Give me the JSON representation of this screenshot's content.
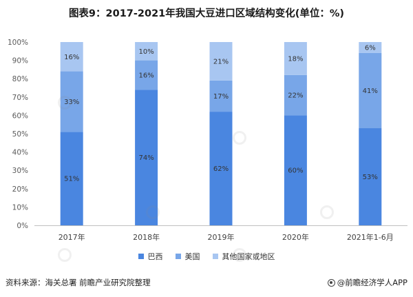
{
  "chart_data": {
    "type": "bar",
    "stacked": true,
    "title": "图表9：2017-2021年我国大豆进口区域结构变化(单位：%)",
    "categories": [
      "2017年",
      "2018年",
      "2019年",
      "2020年",
      "2021年1-6月"
    ],
    "series": [
      {
        "name": "巴西",
        "values": [
          51,
          74,
          62,
          60,
          53
        ],
        "labels": [
          "51%",
          "74%",
          "62%",
          "60%",
          "53%"
        ],
        "color": "#4a86e0"
      },
      {
        "name": "美国",
        "values": [
          33,
          16,
          17,
          22,
          41
        ],
        "labels": [
          "33%",
          "16%",
          "17%",
          "22%",
          "41%"
        ],
        "color": "#78a6e8"
      },
      {
        "name": "其他国家或地区",
        "values": [
          16,
          10,
          21,
          18,
          6
        ],
        "labels": [
          "16%",
          "10%",
          "21%",
          "18%",
          "6%"
        ],
        "color": "#a8c6f1"
      }
    ],
    "yticks": [
      "0%",
      "10%",
      "20%",
      "30%",
      "40%",
      "50%",
      "60%",
      "70%",
      "80%",
      "90%",
      "100%"
    ],
    "ylim": [
      0,
      100
    ],
    "grid": false,
    "legend_position": "bottom"
  },
  "footer": {
    "source": "资料来源：海关总署 前瞻产业研究院整理",
    "brand": "@前瞻经济学人APP"
  },
  "colors": {
    "axis": "#bfbfbf",
    "tick_text": "#595959",
    "bar_label": "#333333"
  },
  "watermark_icon": "qianzhan-logo-icon"
}
